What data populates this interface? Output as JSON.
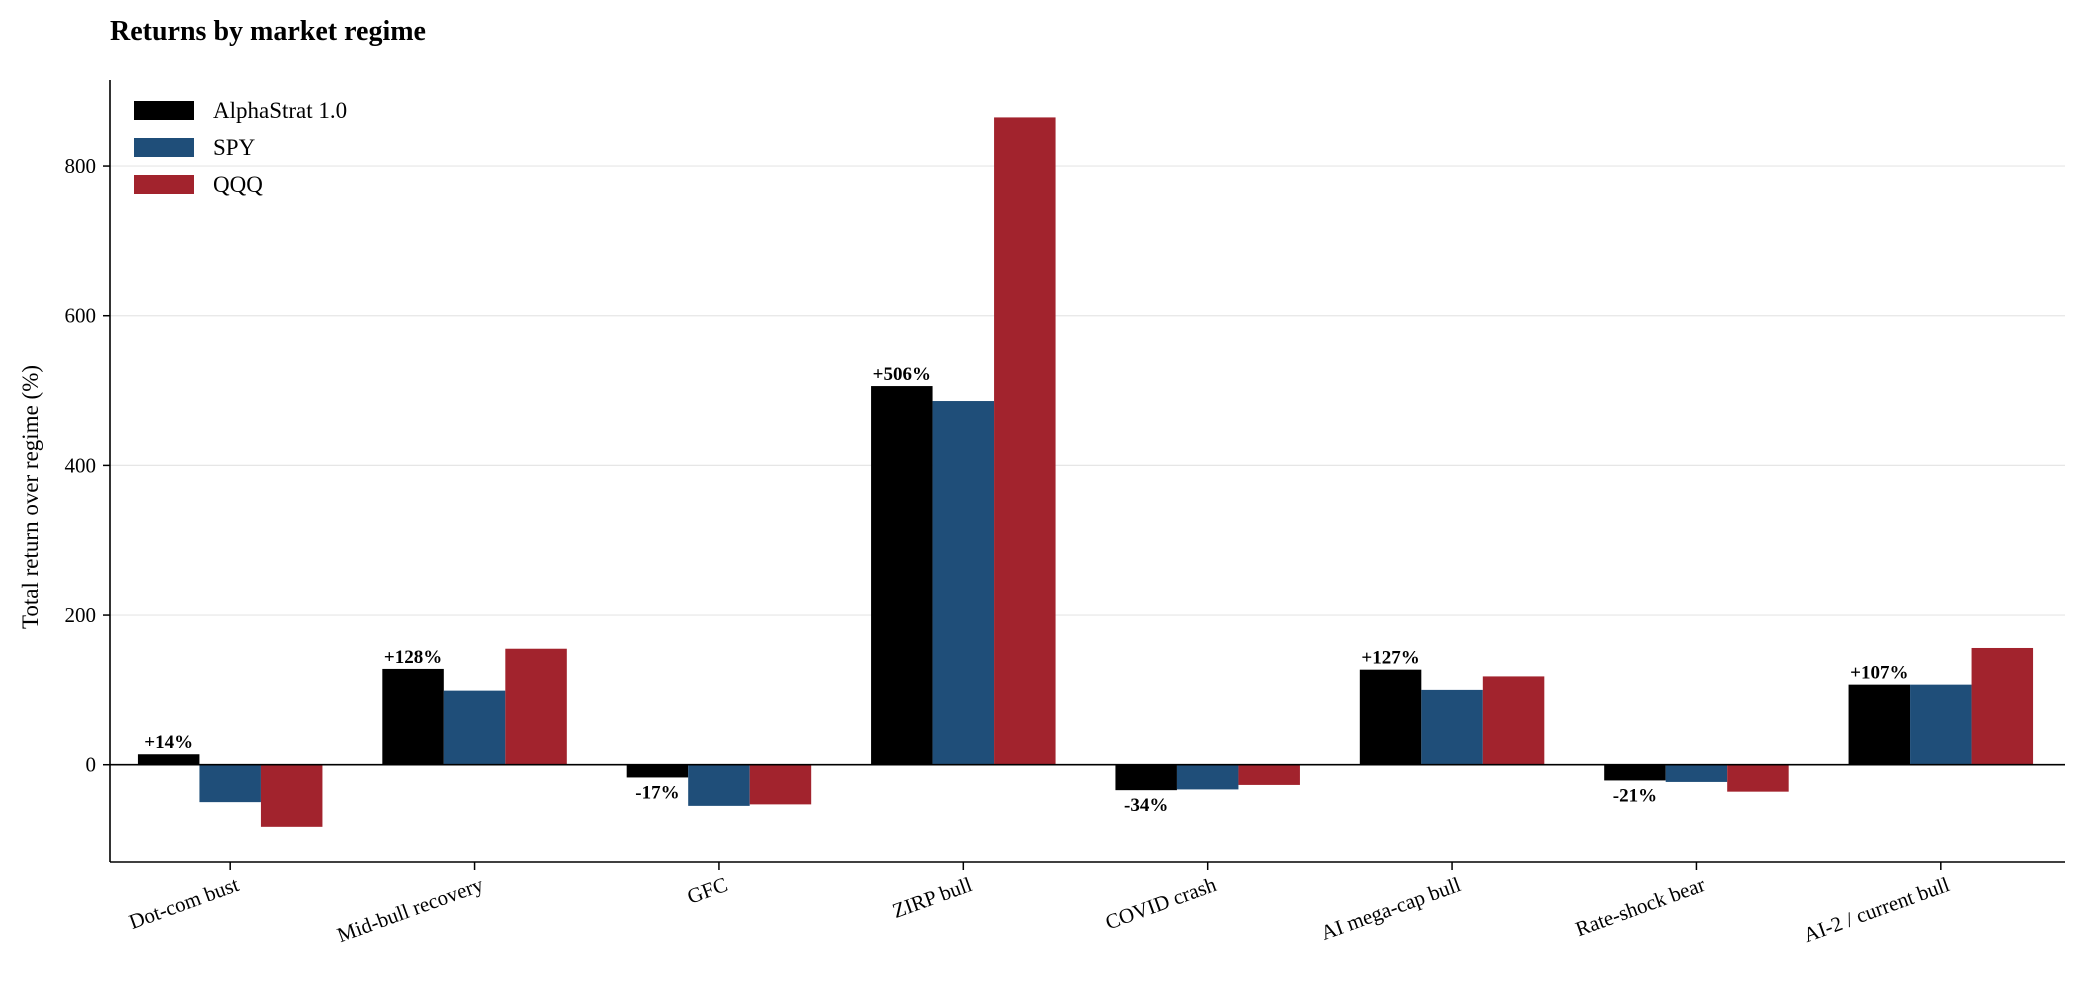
{
  "chart_data": {
    "type": "bar",
    "title": "Returns by market regime",
    "xlabel": "",
    "ylabel": "Total return over regime (%)",
    "ylim": [
      -130,
      915
    ],
    "yticks": [
      0,
      200,
      400,
      600,
      800
    ],
    "grid": "y",
    "legend_position": "top-left",
    "categories": [
      "Dot-com bust",
      "Mid-bull recovery",
      "GFC",
      "ZIRP bull",
      "COVID crash",
      "AI mega-cap bull",
      "Rate-shock bear",
      "AI-2 / current bull"
    ],
    "series": [
      {
        "name": "AlphaStrat 1.0",
        "color": "#000000",
        "values": [
          14,
          128,
          -17,
          506,
          -34,
          127,
          -21,
          107
        ],
        "labels": [
          "+14%",
          "+128%",
          "-17%",
          "+506%",
          "-34%",
          "+127%",
          "-21%",
          "+107%"
        ]
      },
      {
        "name": "SPY",
        "color": "#1f4e79",
        "values": [
          -50,
          99,
          -55,
          486,
          -33,
          100,
          -23,
          107
        ]
      },
      {
        "name": "QQQ",
        "color": "#a2232d",
        "values": [
          -83,
          155,
          -53,
          865,
          -27,
          118,
          -36,
          156
        ]
      }
    ]
  }
}
